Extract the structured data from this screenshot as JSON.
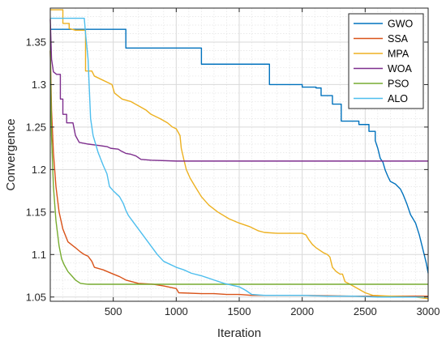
{
  "chart_data": {
    "type": "line",
    "xlabel": "Iteration",
    "ylabel": "Convergence",
    "xlim": [
      0,
      3000
    ],
    "ylim": [
      1.045,
      1.39
    ],
    "x_ticks": [
      500,
      1000,
      1500,
      2000,
      2500,
      3000
    ],
    "y_ticks": [
      1.05,
      1.1,
      1.15,
      1.2,
      1.25,
      1.3,
      1.35
    ],
    "y_tick_labels": [
      "1.05",
      "1.1",
      "1.15",
      "1.2",
      "1.25",
      "1.3",
      "1.35"
    ],
    "grid": true,
    "minor_grid": true,
    "legend_position": "top-right",
    "series": [
      {
        "name": "GWO",
        "color": "#0072BD",
        "points": [
          [
            0,
            1.365
          ],
          [
            600,
            1.365
          ],
          [
            600,
            1.343
          ],
          [
            1200,
            1.343
          ],
          [
            1200,
            1.324
          ],
          [
            1740,
            1.324
          ],
          [
            1740,
            1.3
          ],
          [
            2000,
            1.3
          ],
          [
            2000,
            1.297
          ],
          [
            2110,
            1.297
          ],
          [
            2110,
            1.296
          ],
          [
            2150,
            1.296
          ],
          [
            2150,
            1.287
          ],
          [
            2240,
            1.287
          ],
          [
            2240,
            1.277
          ],
          [
            2310,
            1.277
          ],
          [
            2310,
            1.257
          ],
          [
            2450,
            1.257
          ],
          [
            2450,
            1.253
          ],
          [
            2530,
            1.253
          ],
          [
            2530,
            1.245
          ],
          [
            2580,
            1.245
          ],
          [
            2580,
            1.234
          ],
          [
            2600,
            1.225
          ],
          [
            2620,
            1.213
          ],
          [
            2640,
            1.209
          ],
          [
            2660,
            1.199
          ],
          [
            2680,
            1.192
          ],
          [
            2700,
            1.186
          ],
          [
            2740,
            1.183
          ],
          [
            2780,
            1.177
          ],
          [
            2800,
            1.171
          ],
          [
            2830,
            1.16
          ],
          [
            2860,
            1.147
          ],
          [
            2900,
            1.137
          ],
          [
            2930,
            1.123
          ],
          [
            2960,
            1.105
          ],
          [
            2985,
            1.09
          ],
          [
            3000,
            1.078
          ]
        ]
      },
      {
        "name": "SSA",
        "color": "#D95319",
        "points": [
          [
            0,
            1.34
          ],
          [
            10,
            1.27
          ],
          [
            25,
            1.22
          ],
          [
            45,
            1.18
          ],
          [
            70,
            1.15
          ],
          [
            100,
            1.13
          ],
          [
            140,
            1.115
          ],
          [
            200,
            1.108
          ],
          [
            240,
            1.103
          ],
          [
            270,
            1.1
          ],
          [
            300,
            1.098
          ],
          [
            330,
            1.092
          ],
          [
            350,
            1.085
          ],
          [
            420,
            1.082
          ],
          [
            500,
            1.077
          ],
          [
            550,
            1.074
          ],
          [
            600,
            1.07
          ],
          [
            700,
            1.066
          ],
          [
            820,
            1.065
          ],
          [
            900,
            1.063
          ],
          [
            1000,
            1.06
          ],
          [
            1020,
            1.055
          ],
          [
            1200,
            1.054
          ],
          [
            1300,
            1.054
          ],
          [
            1400,
            1.053
          ],
          [
            1500,
            1.053
          ],
          [
            1600,
            1.052
          ],
          [
            2000,
            1.052
          ],
          [
            2400,
            1.051
          ],
          [
            2800,
            1.051
          ],
          [
            3000,
            1.051
          ]
        ]
      },
      {
        "name": "MPA",
        "color": "#EDB120",
        "points": [
          [
            0,
            1.388
          ],
          [
            100,
            1.388
          ],
          [
            100,
            1.372
          ],
          [
            150,
            1.372
          ],
          [
            150,
            1.366
          ],
          [
            200,
            1.364
          ],
          [
            280,
            1.364
          ],
          [
            280,
            1.316
          ],
          [
            330,
            1.316
          ],
          [
            350,
            1.31
          ],
          [
            420,
            1.305
          ],
          [
            490,
            1.3
          ],
          [
            510,
            1.29
          ],
          [
            570,
            1.283
          ],
          [
            640,
            1.28
          ],
          [
            700,
            1.275
          ],
          [
            760,
            1.27
          ],
          [
            800,
            1.265
          ],
          [
            870,
            1.26
          ],
          [
            930,
            1.255
          ],
          [
            970,
            1.25
          ],
          [
            1000,
            1.248
          ],
          [
            1030,
            1.24
          ],
          [
            1040,
            1.225
          ],
          [
            1060,
            1.212
          ],
          [
            1080,
            1.2
          ],
          [
            1110,
            1.19
          ],
          [
            1150,
            1.18
          ],
          [
            1200,
            1.168
          ],
          [
            1260,
            1.158
          ],
          [
            1330,
            1.15
          ],
          [
            1420,
            1.142
          ],
          [
            1500,
            1.137
          ],
          [
            1580,
            1.133
          ],
          [
            1650,
            1.128
          ],
          [
            1700,
            1.126
          ],
          [
            1800,
            1.125
          ],
          [
            2000,
            1.125
          ],
          [
            2030,
            1.123
          ],
          [
            2050,
            1.118
          ],
          [
            2080,
            1.112
          ],
          [
            2110,
            1.108
          ],
          [
            2140,
            1.105
          ],
          [
            2170,
            1.102
          ],
          [
            2200,
            1.1
          ],
          [
            2220,
            1.097
          ],
          [
            2240,
            1.085
          ],
          [
            2270,
            1.08
          ],
          [
            2300,
            1.077
          ],
          [
            2320,
            1.077
          ],
          [
            2340,
            1.068
          ],
          [
            2380,
            1.065
          ],
          [
            2440,
            1.06
          ],
          [
            2500,
            1.055
          ],
          [
            2560,
            1.052
          ],
          [
            2700,
            1.051
          ],
          [
            2900,
            1.05
          ],
          [
            3000,
            1.048
          ]
        ]
      },
      {
        "name": "WOA",
        "color": "#7E2F8E",
        "points": [
          [
            0,
            1.377
          ],
          [
            10,
            1.33
          ],
          [
            25,
            1.315
          ],
          [
            50,
            1.312
          ],
          [
            80,
            1.312
          ],
          [
            80,
            1.283
          ],
          [
            100,
            1.283
          ],
          [
            100,
            1.265
          ],
          [
            130,
            1.265
          ],
          [
            130,
            1.255
          ],
          [
            180,
            1.255
          ],
          [
            200,
            1.24
          ],
          [
            230,
            1.232
          ],
          [
            300,
            1.23
          ],
          [
            400,
            1.228
          ],
          [
            450,
            1.227
          ],
          [
            480,
            1.225
          ],
          [
            540,
            1.224
          ],
          [
            560,
            1.222
          ],
          [
            600,
            1.219
          ],
          [
            640,
            1.218
          ],
          [
            680,
            1.216
          ],
          [
            720,
            1.212
          ],
          [
            800,
            1.211
          ],
          [
            1000,
            1.21
          ],
          [
            3000,
            1.21
          ]
        ]
      },
      {
        "name": "PSO",
        "color": "#77AC30",
        "points": [
          [
            0,
            1.34
          ],
          [
            10,
            1.24
          ],
          [
            25,
            1.18
          ],
          [
            45,
            1.14
          ],
          [
            70,
            1.11
          ],
          [
            90,
            1.095
          ],
          [
            110,
            1.088
          ],
          [
            140,
            1.08
          ],
          [
            170,
            1.075
          ],
          [
            200,
            1.07
          ],
          [
            240,
            1.066
          ],
          [
            300,
            1.065
          ],
          [
            3000,
            1.065
          ]
        ]
      },
      {
        "name": "ALO",
        "color": "#4DBEEE",
        "points": [
          [
            0,
            1.378
          ],
          [
            270,
            1.378
          ],
          [
            280,
            1.36
          ],
          [
            300,
            1.33
          ],
          [
            320,
            1.26
          ],
          [
            340,
            1.24
          ],
          [
            380,
            1.22
          ],
          [
            420,
            1.205
          ],
          [
            450,
            1.195
          ],
          [
            470,
            1.18
          ],
          [
            500,
            1.175
          ],
          [
            550,
            1.168
          ],
          [
            580,
            1.16
          ],
          [
            600,
            1.152
          ],
          [
            620,
            1.146
          ],
          [
            660,
            1.138
          ],
          [
            700,
            1.13
          ],
          [
            750,
            1.12
          ],
          [
            800,
            1.11
          ],
          [
            850,
            1.1
          ],
          [
            900,
            1.092
          ],
          [
            1000,
            1.085
          ],
          [
            1060,
            1.082
          ],
          [
            1120,
            1.078
          ],
          [
            1200,
            1.075
          ],
          [
            1300,
            1.07
          ],
          [
            1380,
            1.066
          ],
          [
            1500,
            1.062
          ],
          [
            1550,
            1.058
          ],
          [
            1600,
            1.053
          ],
          [
            1700,
            1.052
          ],
          [
            2000,
            1.052
          ],
          [
            2200,
            1.051
          ],
          [
            2400,
            1.051
          ],
          [
            2600,
            1.05
          ],
          [
            2800,
            1.05
          ],
          [
            3000,
            1.05
          ]
        ]
      }
    ]
  }
}
